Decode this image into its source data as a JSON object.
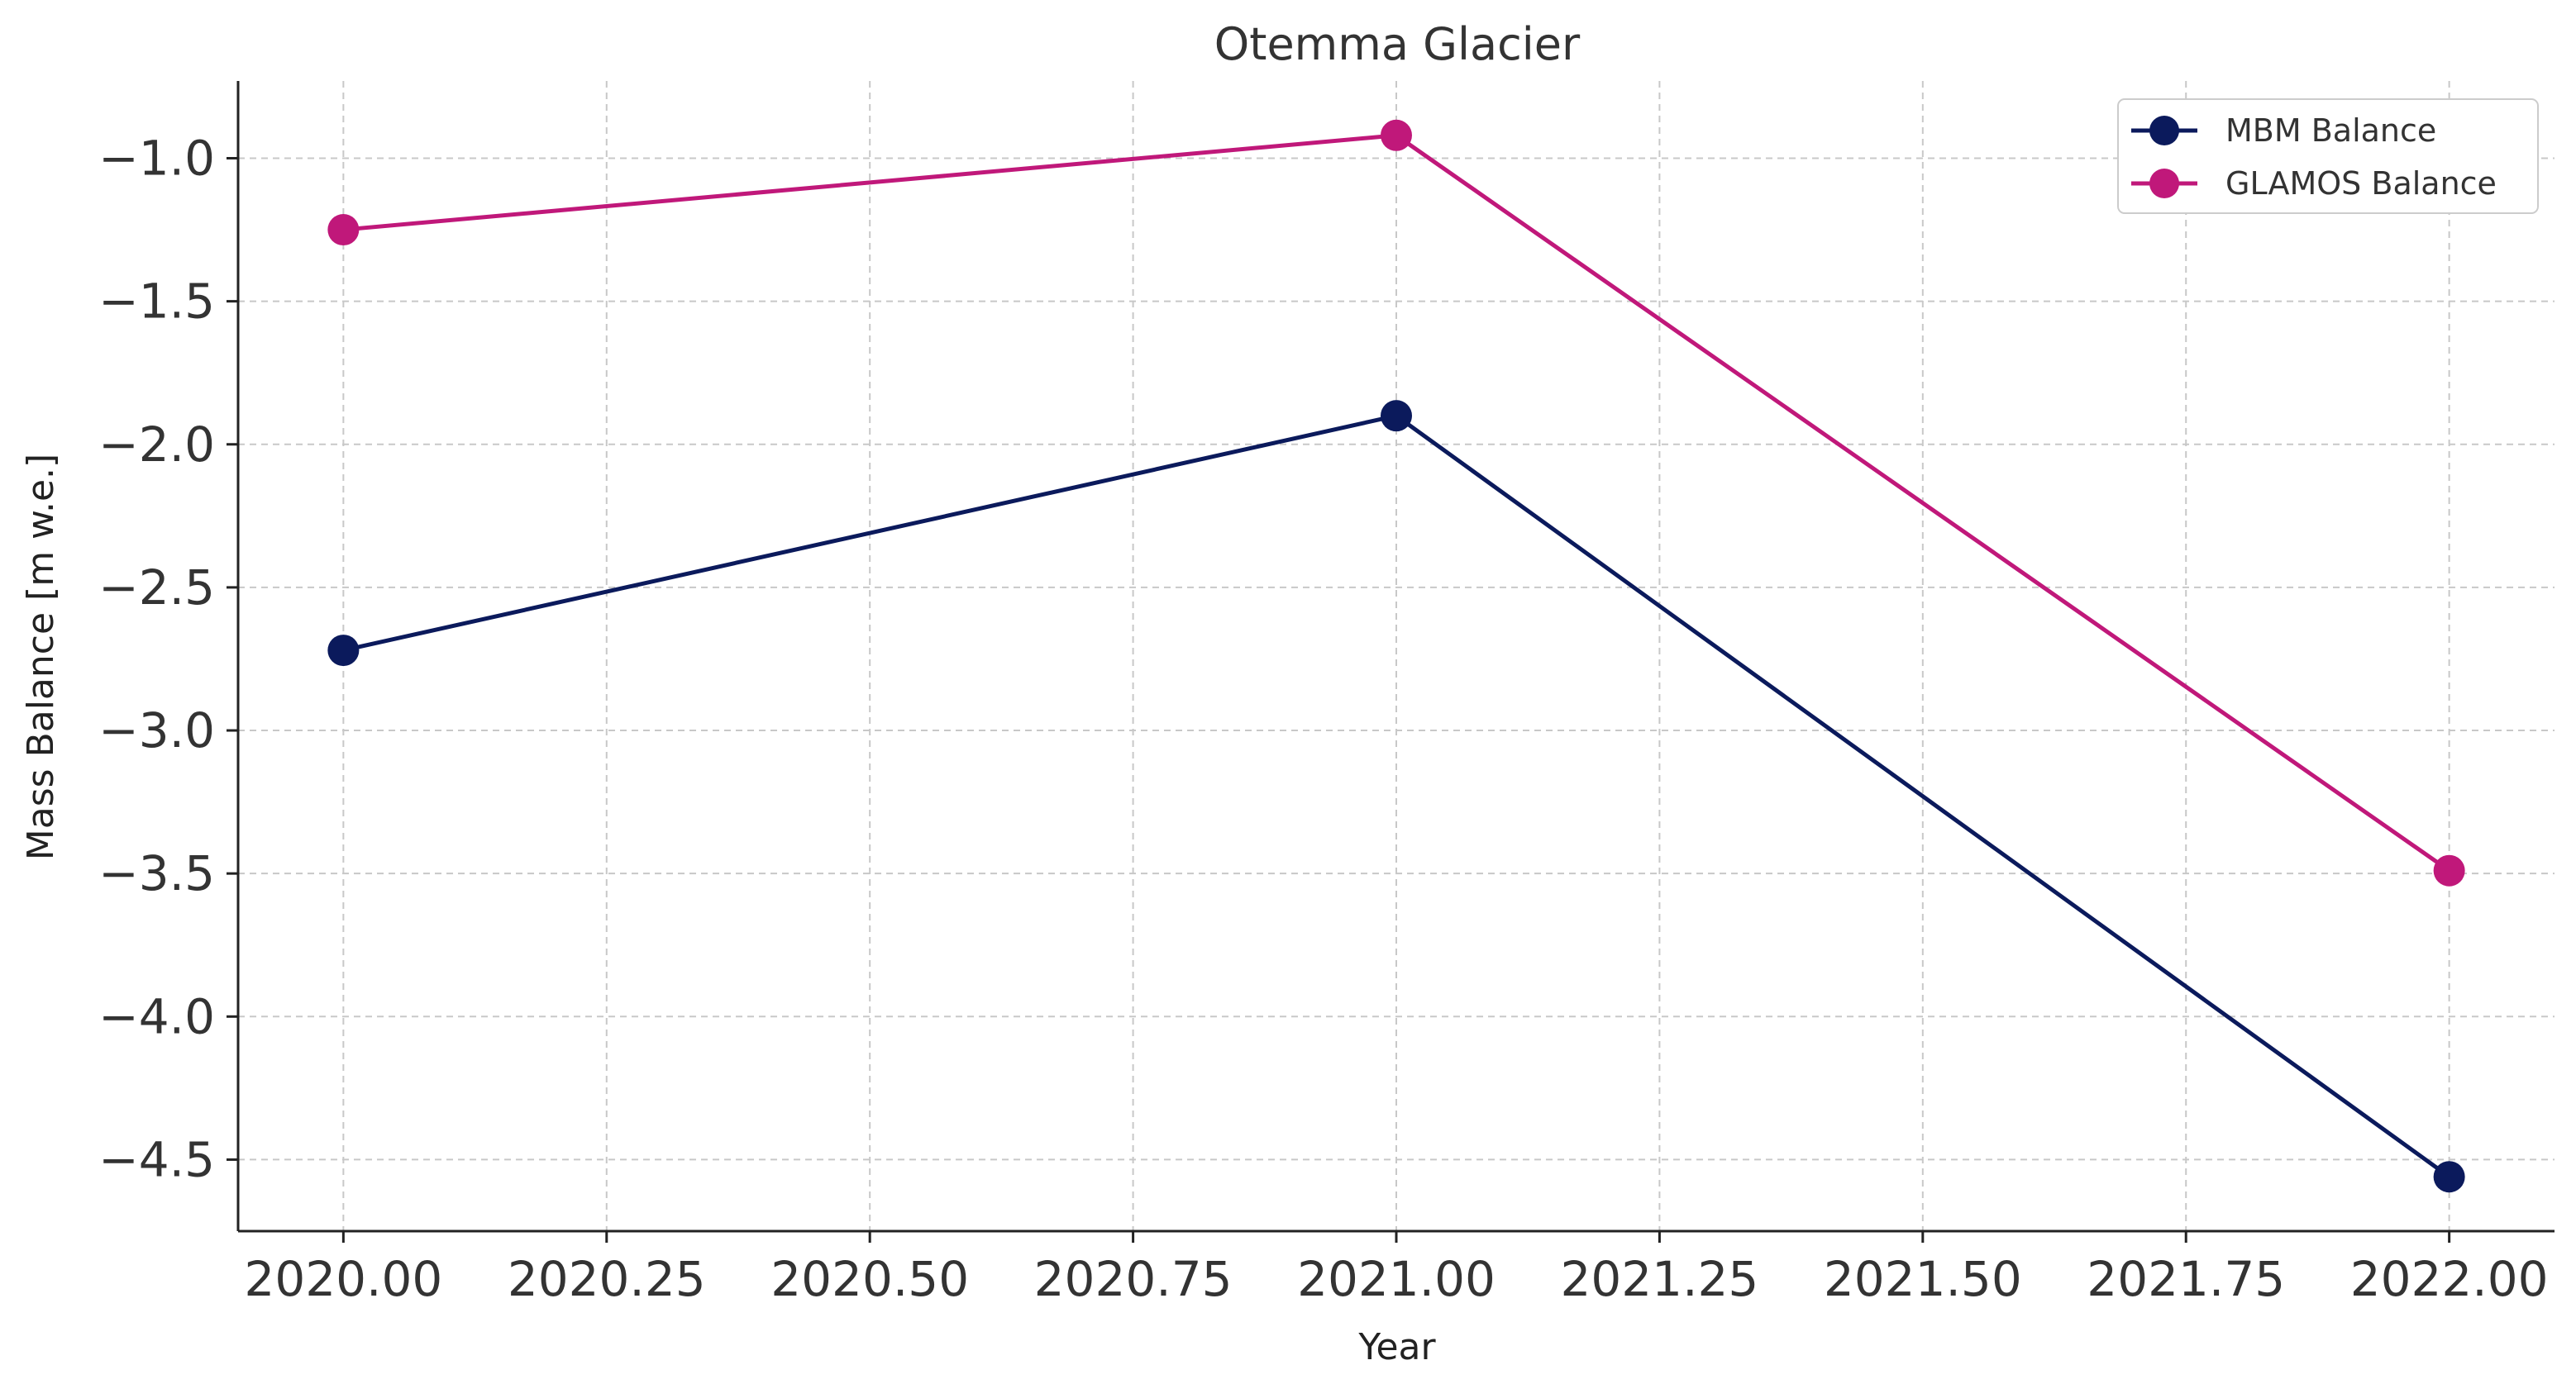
{
  "chart_data": {
    "type": "line",
    "title": "Otemma Glacier",
    "xlabel": "Year",
    "ylabel": "Mass Balance [m w.e.]",
    "x": [
      2020,
      2021,
      2022
    ],
    "xlim": [
      1999.9,
      2022.1
    ],
    "ylim": [
      -4.75,
      -0.73
    ],
    "xticks": [
      2020.0,
      2020.25,
      2020.5,
      2020.75,
      2021.0,
      2021.25,
      2021.5,
      2021.75,
      2022.0
    ],
    "xtick_labels": [
      "2020.00",
      "2020.25",
      "2020.50",
      "2020.75",
      "2021.00",
      "2021.25",
      "2021.50",
      "2021.75",
      "2022.00"
    ],
    "yticks": [
      -1.0,
      -1.5,
      -2.0,
      -2.5,
      -3.0,
      -3.5,
      -4.0,
      -4.5
    ],
    "ytick_labels": [
      "−1.0",
      "−1.5",
      "−2.0",
      "−2.5",
      "−3.0",
      "−3.5",
      "−4.0",
      "−4.5"
    ],
    "grid": true,
    "legend_position": "top-right",
    "series": [
      {
        "name": "MBM Balance",
        "values": [
          -2.72,
          -1.9,
          -4.56
        ],
        "color": "#0b1a5c"
      },
      {
        "name": "GLAMOS Balance",
        "values": [
          -1.25,
          -0.92,
          -3.49
        ],
        "color": "#c0187a"
      }
    ]
  }
}
